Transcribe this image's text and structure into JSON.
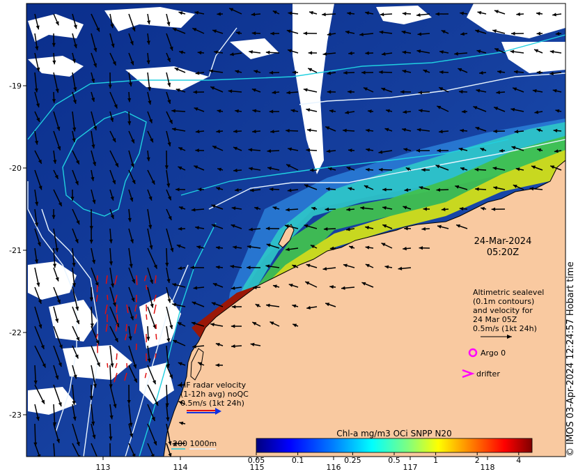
{
  "map": {
    "lon_ticks": [
      "113",
      "114",
      "115",
      "116",
      "117",
      "118"
    ],
    "lat_ticks": [
      "19",
      "20",
      "21",
      "22",
      "23"
    ],
    "lat_prefix": "-",
    "colors": {
      "ocean_deep": "#0a2e8c",
      "ocean_mid": "#1f5fd0",
      "ocean_light": "#3a9be0",
      "shelf_cyan": "#2fd0e0",
      "shelf_green": "#30c060",
      "coastal_yellow": "#d8e020",
      "coastal_orange": "#e07020",
      "coastal_red": "#a01808",
      "land": "#f9c9a0",
      "cloud": "#ffffff",
      "contour_cyan": "#20d0e0",
      "contour_white": "#e8f4ff",
      "arrow_black": "#000000",
      "hf_arrow_red": "#e01010",
      "argo_magenta": "#ff00ff"
    }
  },
  "timestamp": {
    "date": "24-Mar-2024",
    "time": "05:20Z"
  },
  "altimetry_legend": {
    "lines": [
      "Altimetric sealevel",
      "(0.1m contours)",
      "and velocity for",
      "24 Mar 05Z",
      "0.5m/s (1kt 24h)"
    ]
  },
  "argo": {
    "label": "Argo 0",
    "icon": "circle-marker-icon"
  },
  "drifter": {
    "label": "drifter",
    "icon": "chevron-marker-icon"
  },
  "hf_radar": {
    "lines": [
      "HF radar velocity",
      "(1-12h avg) noQC",
      "0.5m/s (1kt 24h)"
    ]
  },
  "colorbar": {
    "title": "Chl-a mg/m3 OCi SNPP N20",
    "tick_labels": [
      "0.05",
      "0.1",
      "0.25",
      "0.5",
      "1",
      "2",
      "4"
    ],
    "tick_values": [
      0.05,
      0.1,
      0.25,
      0.5,
      1,
      2,
      4
    ],
    "range": [
      0.05,
      5
    ],
    "scale": "log",
    "colors": [
      "#00007f",
      "#0000ff",
      "#007fff",
      "#00ffff",
      "#7fff7f",
      "#ffff00",
      "#ff7f00",
      "#ff0000",
      "#7f0000"
    ]
  },
  "isobath_legend": {
    "label": "200  1000m"
  },
  "credit": "© IMOS 03-Apr-2024 12:24:57 Hobart time"
}
